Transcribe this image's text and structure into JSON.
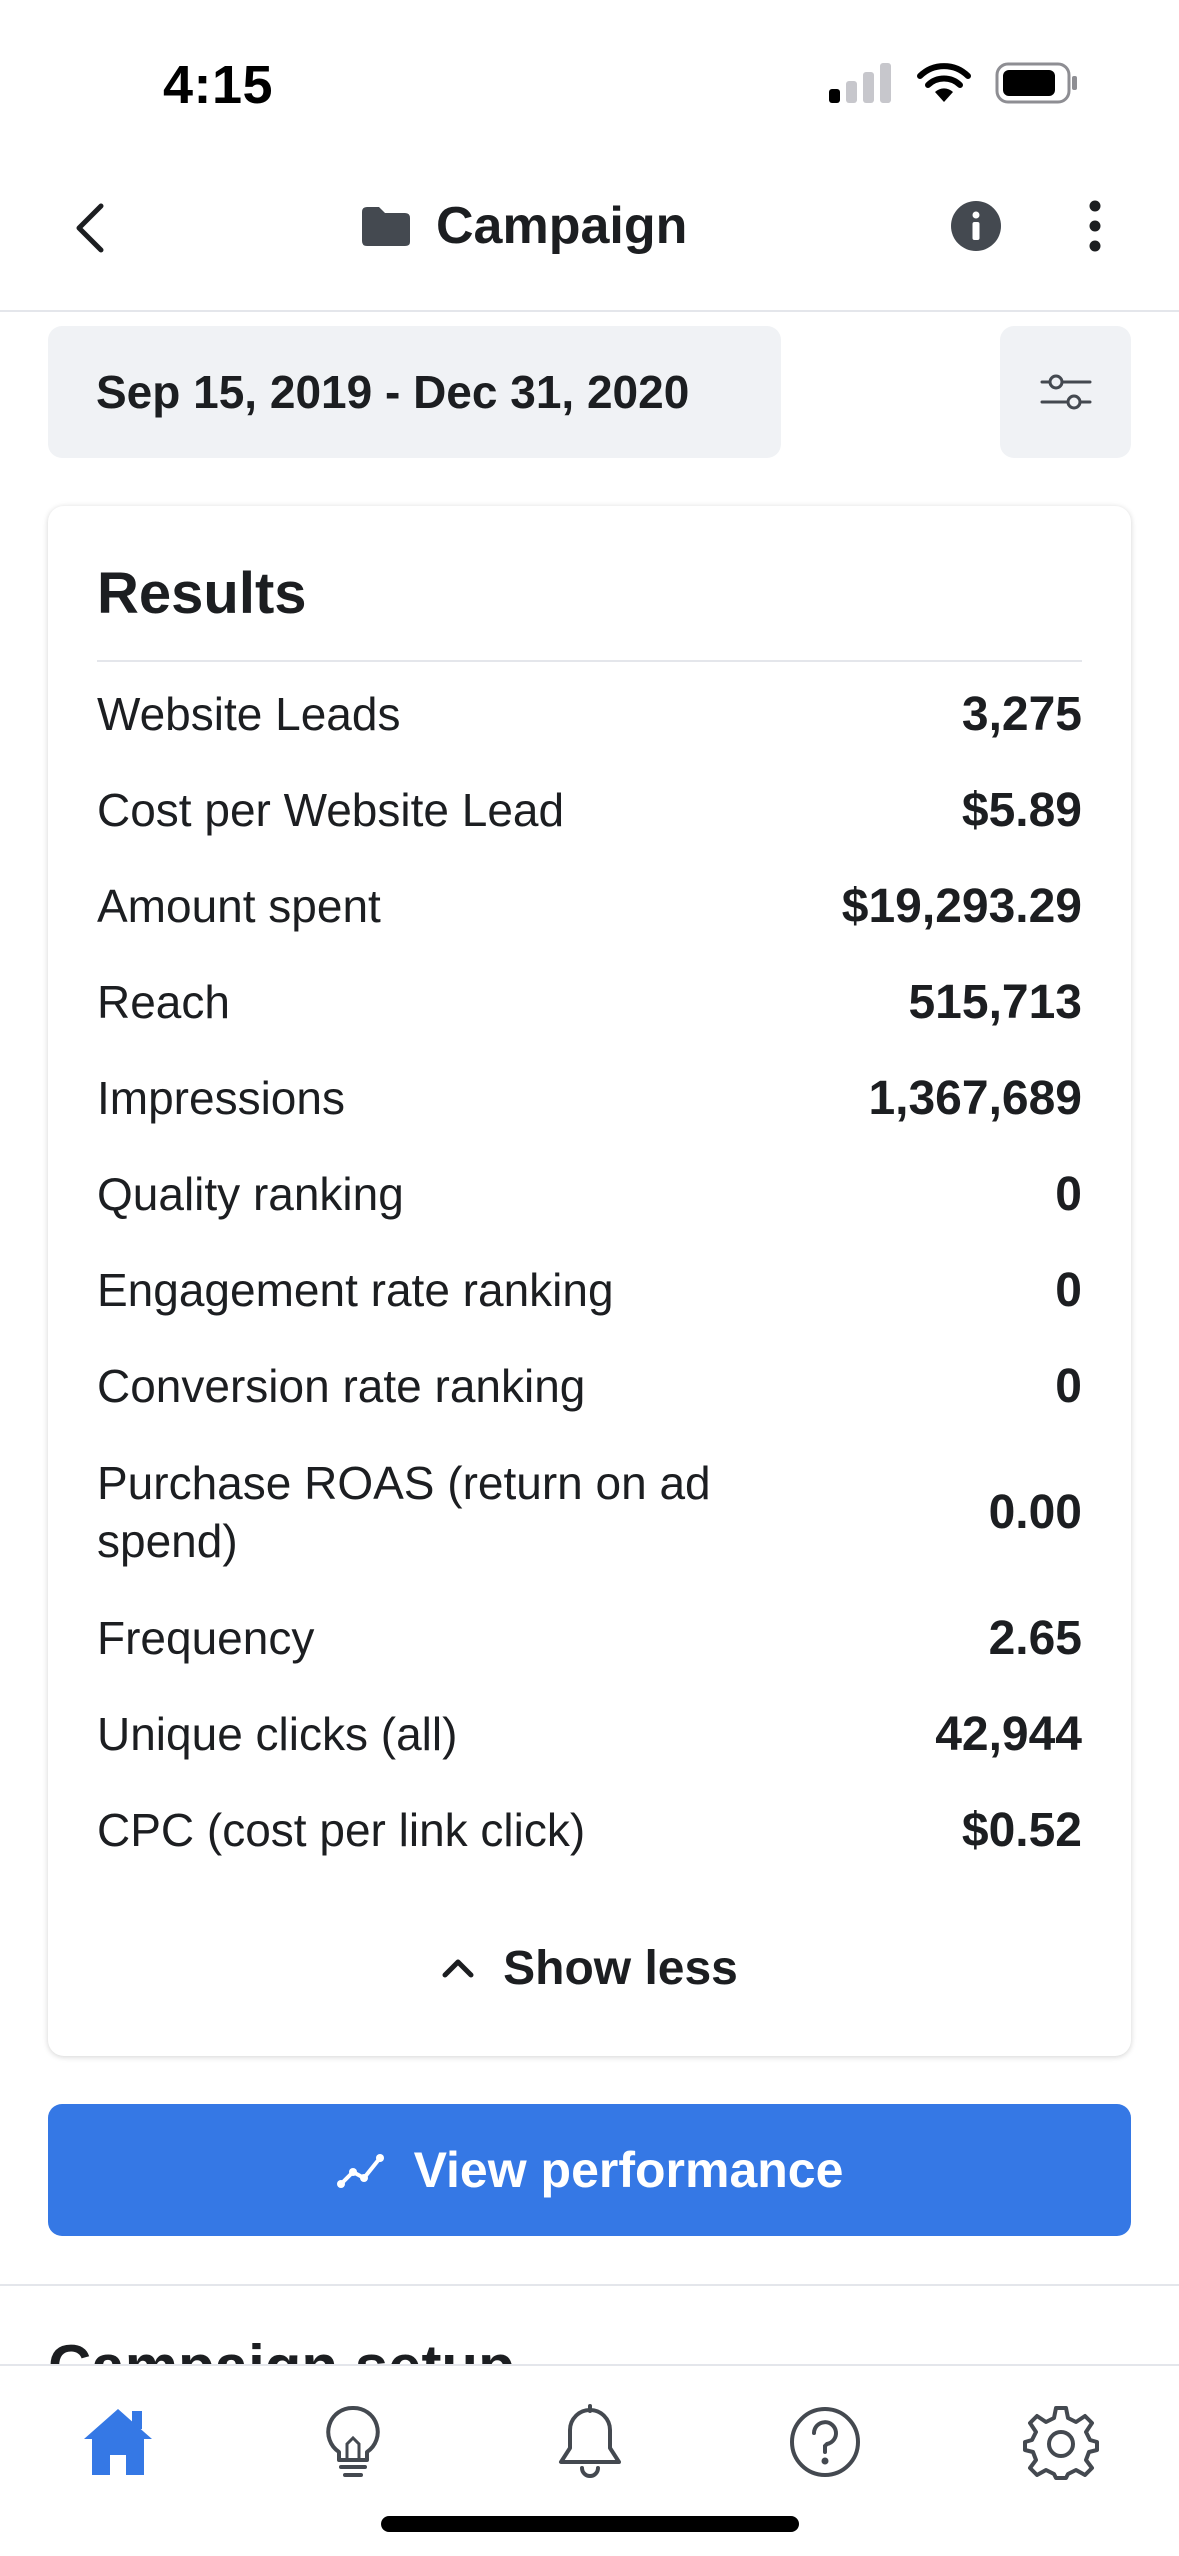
{
  "status_bar": {
    "time": "4:15"
  },
  "nav": {
    "title": "Campaign"
  },
  "date_range": {
    "label": "Sep 15, 2019 - Dec 31, 2020"
  },
  "results": {
    "title": "Results",
    "metrics": [
      {
        "label": "Website Leads",
        "value": "3,275"
      },
      {
        "label": "Cost per Website Lead",
        "value": "$5.89"
      },
      {
        "label": "Amount spent",
        "value": "$19,293.29"
      },
      {
        "label": "Reach",
        "value": "515,713"
      },
      {
        "label": "Impressions",
        "value": "1,367,689"
      },
      {
        "label": "Quality ranking",
        "value": "0"
      },
      {
        "label": "Engagement rate ranking",
        "value": "0"
      },
      {
        "label": "Conversion rate ranking",
        "value": "0"
      },
      {
        "label": "Purchase ROAS (return on ad spend)",
        "value": "0.00"
      },
      {
        "label": "Frequency",
        "value": "2.65"
      },
      {
        "label": "Unique clicks (all)",
        "value": "42,944"
      },
      {
        "label": "CPC (cost per link click)",
        "value": "$0.52"
      }
    ],
    "show_less_label": "Show less"
  },
  "view_performance_label": "View performance",
  "next_section_heading": "Campaign setup",
  "tabs": [
    {
      "icon": "home-icon",
      "active": true
    },
    {
      "icon": "lightbulb-icon",
      "active": false
    },
    {
      "icon": "bell-icon",
      "active": false
    },
    {
      "icon": "help-icon",
      "active": false
    },
    {
      "icon": "gear-icon",
      "active": false
    }
  ],
  "colors": {
    "accent": "#3578e5",
    "text": "#1c1e21",
    "icon": "#444950",
    "surface": "#f0f2f5"
  }
}
